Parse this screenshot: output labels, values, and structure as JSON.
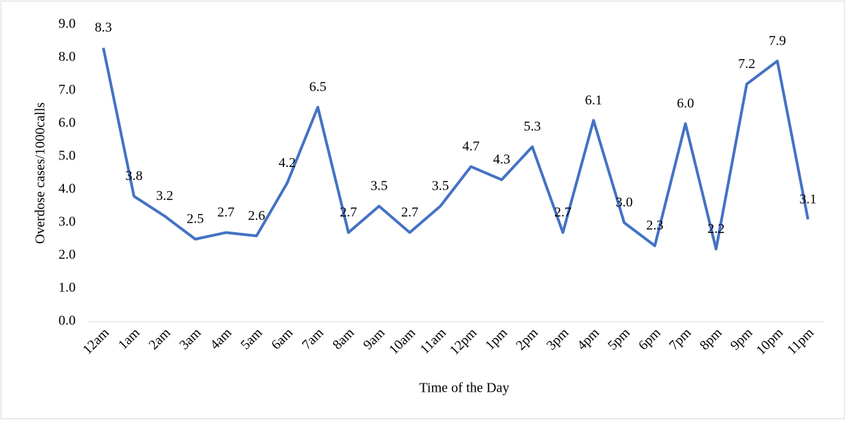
{
  "chart_data": {
    "type": "line",
    "x_label": "Time of the Day",
    "y_label": "Overdose cases/1000calls",
    "categories": [
      "12am",
      "1am",
      "2am",
      "3am",
      "4am",
      "5am",
      "6am",
      "7am",
      "8am",
      "9am",
      "10am",
      "11am",
      "12pm",
      "1pm",
      "2pm",
      "3pm",
      "4pm",
      "5pm",
      "6pm",
      "7pm",
      "8pm",
      "9pm",
      "10pm",
      "11pm"
    ],
    "series": [
      {
        "name": "Overdose cases",
        "color": "#4472c4",
        "values": [
          8.3,
          3.8,
          3.2,
          2.5,
          2.7,
          2.6,
          4.2,
          6.5,
          2.7,
          3.5,
          2.7,
          3.5,
          4.7,
          4.3,
          5.3,
          2.7,
          6.1,
          3.0,
          2.3,
          6.0,
          2.2,
          7.2,
          7.9,
          3.1
        ],
        "value_labels": [
          "8.3",
          "3.8",
          "3.2",
          "2.5",
          "2.7",
          "2.6",
          "4.2",
          "6.5",
          "2.7",
          "3.5",
          "2.7",
          "3.5",
          "4.7",
          "4.3",
          "5.3",
          "2.7",
          "6.1",
          "3.0",
          "2.3",
          "6.0",
          "2.2",
          "7.2",
          "7.9",
          "3.1"
        ]
      }
    ],
    "ylim": [
      0,
      9
    ],
    "yticks": [
      {
        "value": 0,
        "label": "0.0"
      },
      {
        "value": 1,
        "label": "1.0"
      },
      {
        "value": 2,
        "label": "2.0"
      },
      {
        "value": 3,
        "label": "3.0"
      },
      {
        "value": 4,
        "label": "4.0"
      },
      {
        "value": 5,
        "label": "5.0"
      },
      {
        "value": 6,
        "label": "6.0"
      },
      {
        "value": 7,
        "label": "7.0"
      },
      {
        "value": 8,
        "label": "8.0"
      },
      {
        "value": 9,
        "label": "9.0"
      }
    ],
    "grid": false
  }
}
